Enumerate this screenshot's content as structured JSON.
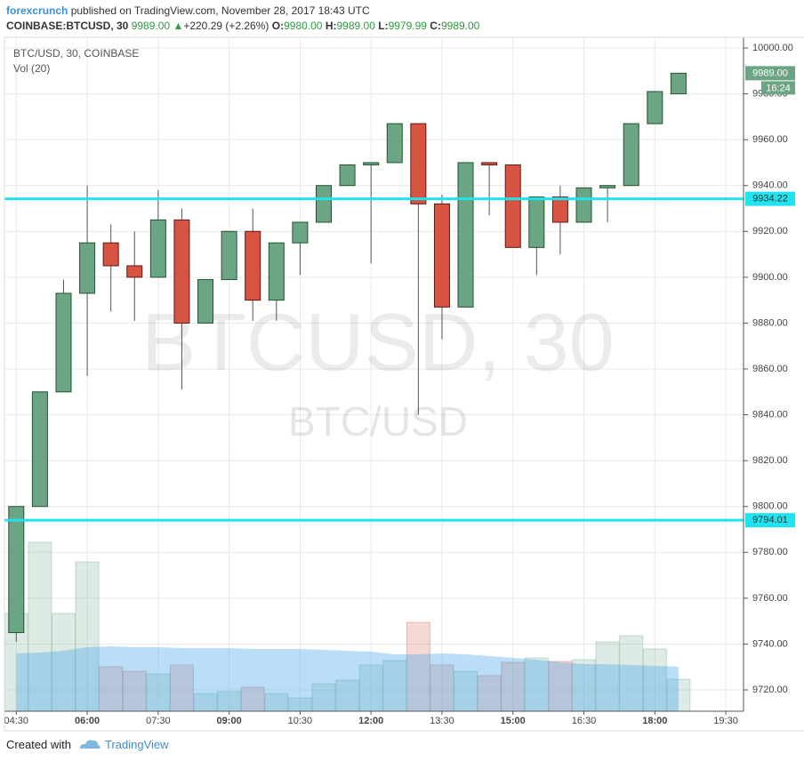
{
  "header": {
    "author": "forexcrunch",
    "published": "published on TradingView.com, November 28, 2017 18:43 UTC",
    "symbol": "COINBASE:BTCUSD, 30",
    "last": "9989.00",
    "arrow": "▲",
    "change": "+220.29 (+2.26%)",
    "o_label": "O:",
    "o": "9980.00",
    "h_label": "H:",
    "h": "9989.00",
    "l_label": "L:",
    "l": "9979.99",
    "c_label": "C:",
    "c": "9989.00"
  },
  "chart_data": {
    "type": "candlestick",
    "legend": [
      "BTC/USD, 30, COINBASE",
      "Vol (20)"
    ],
    "watermark": "BTCUSD, 30",
    "watermark_sub": "BTC/USD",
    "x": [
      4.5,
      5,
      5.5,
      6,
      6.5,
      7,
      7.5,
      8,
      8.5,
      9,
      9.5,
      10,
      10.5,
      11,
      11.5,
      12,
      12.5,
      13,
      13.5,
      14,
      14.5,
      15,
      15.5,
      16,
      16.5,
      17,
      17.5,
      18,
      18.5
    ],
    "open": [
      9745,
      9800,
      9850,
      9893,
      9915,
      9905,
      9900,
      9925,
      9880,
      9899,
      9920,
      9890,
      9915,
      9924,
      9940,
      9949,
      9950,
      9967,
      9932,
      9887,
      9950,
      9949,
      9913,
      9935,
      9924,
      9939,
      9940,
      9967,
      9980
    ],
    "high": [
      9800,
      9850,
      9899,
      9940,
      9923,
      9920,
      9938,
      9930,
      9899,
      9920,
      9930,
      9915,
      9924,
      9940,
      9949,
      9950,
      9967,
      9967,
      9936,
      9950,
      9950,
      9949,
      9935,
      9940,
      9939,
      9940,
      9967,
      9981,
      9989
    ],
    "low": [
      9741,
      9800,
      9850,
      9857,
      9885,
      9881,
      9900,
      9851,
      9880,
      9899,
      9881,
      9881,
      9901,
      9924,
      9940,
      9906,
      9950,
      9840,
      9873,
      9887,
      9927,
      9913,
      9901,
      9910,
      9924,
      9924,
      9940,
      9967,
      9980
    ],
    "close": [
      9800,
      9850,
      9893,
      9915,
      9905,
      9900,
      9925,
      9880,
      9899,
      9920,
      9890,
      9915,
      9924,
      9940,
      9949,
      9950,
      9967,
      9932,
      9887,
      9950,
      9949,
      9913,
      9935,
      9924,
      9939,
      9940,
      9967,
      9981,
      9989
    ],
    "volume": [
      110,
      190,
      110,
      168,
      50,
      45,
      42,
      52,
      20,
      22,
      27,
      20,
      15,
      31,
      35,
      52,
      57,
      100,
      52,
      45,
      40,
      55,
      60,
      56,
      58,
      78,
      85,
      70,
      36
    ],
    "volume_ma": [
      65,
      66,
      68,
      72,
      73,
      72,
      72,
      71,
      71,
      71,
      70,
      70,
      70,
      69,
      68,
      67,
      64,
      64,
      65,
      64,
      62,
      60,
      58,
      55,
      53,
      53,
      52,
      51,
      50
    ],
    "up_color": "#6ba583",
    "down_color": "#d75442",
    "xlim": [
      4.25,
      19.875
    ],
    "xticks": [
      {
        "value": 4.5,
        "label": "04:30"
      },
      {
        "value": 6,
        "label": "06:00"
      },
      {
        "value": 7.5,
        "label": "07:30"
      },
      {
        "value": 9,
        "label": "09:00"
      },
      {
        "value": 10.5,
        "label": "10:30"
      },
      {
        "value": 12,
        "label": "12:00"
      },
      {
        "value": 13.5,
        "label": "13:30"
      },
      {
        "value": 15,
        "label": "15:00"
      },
      {
        "value": 16.5,
        "label": "16:30"
      },
      {
        "value": 18,
        "label": "18:00"
      },
      {
        "value": 19.5,
        "label": "19:30"
      }
    ],
    "ylim": [
      9710.7,
      10004.65
    ],
    "yticks": [
      {
        "value": 9720,
        "label": "9720.00"
      },
      {
        "value": 9740,
        "label": "9740.00"
      },
      {
        "value": 9760,
        "label": "9760.00"
      },
      {
        "value": 9780,
        "label": "9780.00"
      },
      {
        "value": 9800,
        "label": "9800.00"
      },
      {
        "value": 9820,
        "label": "9820.00"
      },
      {
        "value": 9840,
        "label": "9840.00"
      },
      {
        "value": 9860,
        "label": "9860.00"
      },
      {
        "value": 9880,
        "label": "9880.00"
      },
      {
        "value": 9900,
        "label": "9900.00"
      },
      {
        "value": 9920,
        "label": "9920.00"
      },
      {
        "value": 9940,
        "label": "9940.00"
      },
      {
        "value": 9960,
        "label": "9960.00"
      },
      {
        "value": 9980,
        "label": "9980.00"
      },
      {
        "value": 10000,
        "label": "10000.00"
      }
    ],
    "grid": true,
    "hlines": [
      {
        "value": 9934.22,
        "color": "#1fe3ee"
      },
      {
        "value": 9794.01,
        "color": "#1fe3ee"
      }
    ],
    "last_price": {
      "value": 9989,
      "label": "9989.00"
    },
    "countdown": "16:24"
  },
  "footer": {
    "created": "Created with",
    "brand": "TradingView"
  }
}
